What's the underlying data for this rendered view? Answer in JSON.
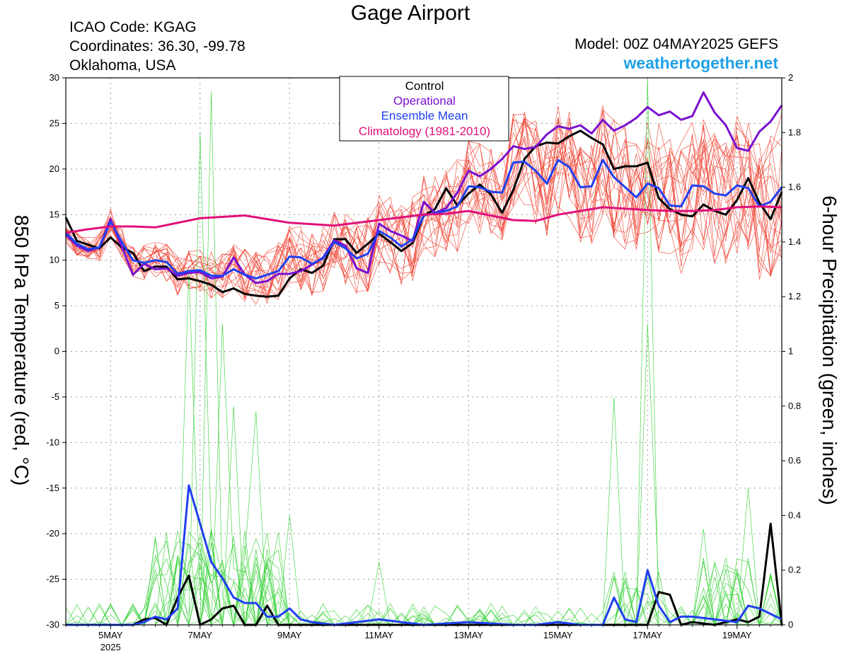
{
  "title": "Gage Airport",
  "info": {
    "icao": "ICAO Code: KGAG",
    "coordinates": "Coordinates: 36.30, -99.78",
    "location": "Oklahoma, USA",
    "model": "Model: 00Z 04MAY2025 GEFS",
    "site": "weathertogether.net"
  },
  "colors": {
    "control": "#000000",
    "operational": "#7a10d0",
    "ensemble_mean": "#2040f0",
    "climatology": "#e0107a",
    "members_temp": "#f04030",
    "members_precip": "#30d030",
    "site": "#1fa0e8"
  },
  "chart_data": {
    "type": "line",
    "title": "Gage Airport",
    "ylabel": "850 hPa Temperature (red, °C)",
    "y2label": "6-hour Precipitation (green, inches)",
    "ylim": [
      -30,
      30
    ],
    "y2lim": [
      0,
      2
    ],
    "yticks": [
      30,
      25,
      20,
      15,
      10,
      5,
      0,
      -5,
      -10,
      -15,
      -20,
      -25,
      -30
    ],
    "y2ticks": [
      2,
      1.8,
      1.6,
      1.4,
      1.2,
      1,
      0.8,
      0.6,
      0.4,
      0.2,
      0
    ],
    "x_unit": "days since 2025-05-04 00Z",
    "xlim": [
      0,
      16
    ],
    "xticks": [
      {
        "x": 1,
        "label": "5MAY",
        "sub": "2025"
      },
      {
        "x": 3,
        "label": "7MAY",
        "sub": ""
      },
      {
        "x": 5,
        "label": "9MAY",
        "sub": ""
      },
      {
        "x": 7,
        "label": "11MAY",
        "sub": ""
      },
      {
        "x": 9,
        "label": "13MAY",
        "sub": ""
      },
      {
        "x": 11,
        "label": "15MAY",
        "sub": ""
      },
      {
        "x": 13,
        "label": "17MAY",
        "sub": ""
      },
      {
        "x": 15,
        "label": "19MAY",
        "sub": ""
      }
    ],
    "grid": true,
    "legend": {
      "position": "top-center",
      "entries": [
        "Control",
        "Operational",
        "Ensemble Mean",
        "Climatology (1981-2010)"
      ]
    },
    "series": [
      {
        "name": "Control",
        "axis": "temp",
        "x": [
          0,
          0.25,
          0.5,
          0.75,
          1,
          1.25,
          1.5,
          1.75,
          2,
          2.25,
          2.5,
          2.75,
          3,
          3.25,
          3.5,
          3.75,
          4,
          4.25,
          4.5,
          4.75,
          5,
          5.25,
          5.5,
          5.75,
          6,
          6.25,
          6.5,
          6.75,
          7,
          7.25,
          7.5,
          7.75,
          8,
          8.25,
          8.5,
          8.75,
          9,
          9.25,
          9.5,
          9.75,
          10,
          10.25,
          10.5,
          10.75,
          11,
          11.25,
          11.5,
          11.75,
          12,
          12.25,
          12.5,
          12.75,
          13,
          13.25,
          13.5,
          13.75,
          14,
          14.25,
          14.5,
          14.75,
          15,
          15.25,
          15.5,
          15.75,
          16
        ],
        "values": [
          14.7,
          12.1,
          11.7,
          11.3,
          12.5,
          11.4,
          10.8,
          8.8,
          9.3,
          9.3,
          7.9,
          8.0,
          7.7,
          7.3,
          6.5,
          6.9,
          6.3,
          6.1,
          6.0,
          6.1,
          8.0,
          9.0,
          8.6,
          9.4,
          12.3,
          12.3,
          10.8,
          11.8,
          12.9,
          12.0,
          11.0,
          11.9,
          14.9,
          15.6,
          17.9,
          16.0,
          17.3,
          18.3,
          17.2,
          15.2,
          17.7,
          21.1,
          22.5,
          22.9,
          22.8,
          23.6,
          24.2,
          23.4,
          22.7,
          20.0,
          20.3,
          20.3,
          20.7,
          16.8,
          15.6,
          15.0,
          14.8,
          16.1,
          15.4,
          15.0,
          16.6,
          19.0,
          16.3,
          14.5,
          17.5
        ]
      },
      {
        "name": "Operational",
        "axis": "temp",
        "x": [
          0,
          0.25,
          0.5,
          0.75,
          1,
          1.25,
          1.5,
          1.75,
          2,
          2.25,
          2.5,
          2.75,
          3,
          3.25,
          3.5,
          3.75,
          4,
          4.25,
          4.5,
          4.75,
          5,
          5.25,
          5.5,
          5.75,
          6,
          6.25,
          6.5,
          6.75,
          7,
          7.25,
          7.5,
          7.75,
          8,
          8.25,
          8.5,
          8.75,
          9,
          9.25,
          9.5,
          9.75,
          10,
          10.25,
          10.5,
          10.75,
          11,
          11.25,
          11.5,
          11.75,
          12,
          12.25,
          12.5,
          12.75,
          13,
          13.25,
          13.5,
          13.75,
          14,
          14.25,
          14.5,
          14.75,
          15,
          15.25,
          15.5,
          15.75,
          16
        ],
        "values": [
          12.8,
          11.6,
          11.0,
          11.4,
          14.5,
          11.5,
          8.4,
          9.6,
          9.0,
          9.1,
          8.3,
          8.6,
          8.7,
          8.0,
          8.2,
          10.3,
          8.4,
          7.5,
          7.7,
          8.5,
          8.5,
          8.8,
          9.5,
          10.3,
          12.2,
          11.6,
          9.1,
          8.6,
          14.0,
          13.2,
          12.7,
          12.1,
          16.4,
          15.2,
          15.7,
          17.4,
          19.8,
          19.2,
          20.0,
          21.1,
          22.5,
          22.2,
          22.4,
          23.8,
          24.7,
          24.4,
          24.8,
          23.9,
          25.4,
          24.2,
          24.8,
          25.6,
          26.8,
          25.9,
          26.3,
          25.4,
          25.8,
          28.4,
          26.2,
          24.8,
          22.3,
          22.0,
          24.1,
          25.2,
          27.0
        ]
      },
      {
        "name": "Ensemble Mean",
        "axis": "temp",
        "x": [
          0,
          0.25,
          0.5,
          0.75,
          1,
          1.25,
          1.5,
          1.75,
          2,
          2.25,
          2.5,
          2.75,
          3,
          3.25,
          3.5,
          3.75,
          4,
          4.25,
          4.5,
          4.75,
          5,
          5.25,
          5.5,
          5.75,
          6,
          6.25,
          6.5,
          6.75,
          7,
          7.25,
          7.5,
          7.75,
          8,
          8.25,
          8.5,
          8.75,
          9,
          9.25,
          9.5,
          9.75,
          10,
          10.25,
          10.5,
          10.75,
          11,
          11.25,
          11.5,
          11.75,
          12,
          12.25,
          12.5,
          12.75,
          13,
          13.25,
          13.5,
          13.75,
          14,
          14.25,
          14.5,
          14.75,
          15,
          15.25,
          15.5,
          15.75,
          16
        ],
        "values": [
          13.0,
          11.8,
          11.2,
          11.4,
          14.2,
          12.0,
          10.0,
          9.7,
          10.0,
          9.8,
          8.5,
          8.8,
          8.9,
          8.3,
          8.3,
          9.0,
          8.4,
          8.0,
          8.4,
          8.8,
          10.4,
          10.3,
          9.6,
          10.2,
          12.0,
          11.3,
          10.2,
          10.7,
          13.2,
          12.5,
          11.5,
          12.3,
          14.9,
          15.2,
          15.4,
          15.9,
          18.1,
          18.0,
          17.5,
          17.4,
          20.7,
          20.8,
          19.8,
          18.4,
          21.0,
          20.2,
          18.0,
          18.1,
          21.0,
          19.1,
          18.0,
          16.9,
          18.4,
          17.9,
          16.0,
          15.9,
          18.2,
          18.1,
          17.3,
          17.1,
          18.2,
          17.9,
          15.9,
          16.4,
          18.0
        ]
      },
      {
        "name": "Climatology (1981-2010)",
        "axis": "temp",
        "x": [
          0,
          0.5,
          1,
          1.5,
          2,
          3,
          4,
          5,
          6,
          7,
          8,
          8.5,
          9,
          10,
          10.5,
          11,
          12,
          13,
          13.5,
          14,
          14.5,
          15,
          15.5,
          16
        ],
        "values": [
          13.0,
          13.4,
          13.7,
          13.7,
          13.6,
          14.6,
          14.9,
          14.1,
          13.8,
          14.4,
          15.0,
          15.1,
          15.4,
          14.4,
          14.3,
          15.0,
          15.8,
          15.5,
          15.4,
          15.4,
          15.5,
          15.8,
          15.9,
          15.8
        ]
      },
      {
        "name": "Control",
        "axis": "precip",
        "x": [
          0,
          0.5,
          1,
          1.5,
          1.75,
          2,
          2.25,
          2.5,
          2.75,
          3,
          3.25,
          3.5,
          3.75,
          4,
          4.25,
          4.5,
          4.75,
          5,
          5.5,
          6,
          7,
          8,
          9,
          10,
          11,
          12,
          12.5,
          13,
          13.25,
          13.5,
          13.75,
          14,
          14.5,
          15,
          15.25,
          15.5,
          15.75,
          16
        ],
        "values": [
          0,
          0,
          0,
          0,
          0.02,
          0.025,
          0.0,
          0.1,
          0.18,
          0.0,
          0.02,
          0.06,
          0.07,
          0.0,
          0.0,
          0.07,
          0.0,
          0.0,
          0.0,
          0.0,
          0.0,
          0.0,
          0.0,
          0.0,
          0.0,
          0.0,
          0.0,
          0.0,
          0.12,
          0.11,
          0.0,
          0.01,
          0.0,
          0.02,
          0.01,
          0.03,
          0.37,
          0.0
        ]
      },
      {
        "name": "Ensemble Mean",
        "axis": "precip",
        "x": [
          0,
          1,
          1.5,
          1.75,
          2,
          2.25,
          2.5,
          2.75,
          3,
          3.25,
          3.5,
          3.75,
          4,
          4.25,
          4.5,
          4.75,
          5,
          5.25,
          5.5,
          6,
          7,
          8,
          9,
          10,
          10.5,
          11,
          11.5,
          12,
          12.25,
          12.5,
          12.75,
          13,
          13.25,
          13.5,
          13.75,
          14,
          14.5,
          15,
          15.25,
          15.5,
          15.75,
          16
        ],
        "values": [
          0,
          0,
          0.0,
          0.01,
          0.03,
          0.02,
          0.06,
          0.51,
          0.37,
          0.23,
          0.17,
          0.1,
          0.08,
          0.08,
          0.03,
          0.03,
          0.06,
          0.02,
          0.01,
          0.0,
          0.02,
          0.0,
          0.01,
          0.0,
          0.0,
          0.01,
          0.0,
          0.0,
          0.1,
          0.02,
          0.01,
          0.2,
          0.07,
          0.01,
          0.03,
          0.03,
          0.02,
          0.01,
          0.07,
          0.06,
          0.04,
          0.02
        ]
      }
    ]
  },
  "legend": {
    "control": "Control",
    "operational": "Operational",
    "ensemble_mean": "Ensemble Mean",
    "climatology": "Climatology (1981-2010)"
  },
  "axes": {
    "ylabel": "850 hPa Temperature (red, °C)",
    "y2label": "6-hour Precipitation (green, inches)"
  }
}
